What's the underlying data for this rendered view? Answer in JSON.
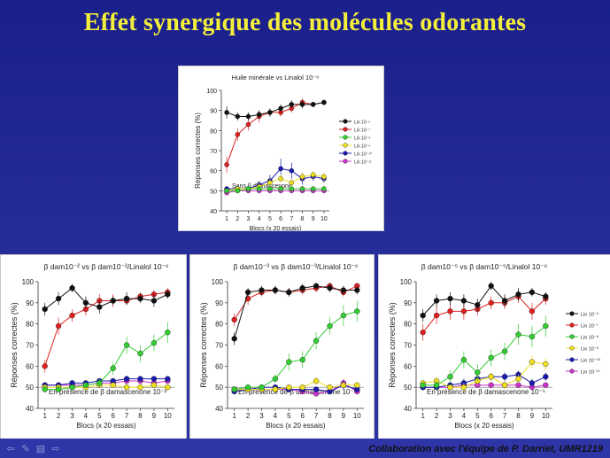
{
  "slide": {
    "title": "Effet synergique des molécules odorantes",
    "credit": "Collaboration avec l'équipe de P. Darriet, UMR1219",
    "nav_icons": [
      "prev-icon",
      "pen-icon",
      "menu-icon",
      "next-icon"
    ]
  },
  "series_colors": [
    "#111111",
    "#e02020",
    "#33cc33",
    "#f0e020",
    "#1a1ab0",
    "#cc33cc"
  ],
  "chart_data": [
    {
      "type": "line",
      "title": "Huile minérale vs Linalol 10⁻⁶",
      "annotation": "Sans β damascenone",
      "xlabel": "Blocs (x 20 essais)",
      "ylabel": "Réponses correctes (%)",
      "x": [
        1,
        2,
        3,
        4,
        5,
        6,
        7,
        8,
        9,
        10
      ],
      "xlim": [
        0.5,
        10.5
      ],
      "ylim": [
        40,
        100
      ],
      "yticks": [
        40,
        50,
        60,
        70,
        80,
        90,
        100
      ],
      "xticks": [
        1,
        2,
        3,
        4,
        5,
        6,
        7,
        8,
        9,
        10
      ],
      "chance_line": 50,
      "legend_position": "right",
      "series": [
        {
          "name": "Lin 10⁻⁶",
          "values": [
            89,
            87,
            87,
            88,
            89,
            91,
            93,
            93,
            93,
            94
          ],
          "err": [
            3,
            2,
            2,
            2,
            2,
            2,
            2,
            2,
            1,
            1
          ]
        },
        {
          "name": "Lin 10⁻⁷",
          "values": [
            63,
            78,
            83,
            87,
            89,
            89,
            91,
            94,
            93,
            94
          ],
          "err": [
            4,
            3,
            3,
            3,
            2,
            2,
            2,
            2,
            1,
            1
          ]
        },
        {
          "name": "Lin 10⁻⁸",
          "values": [
            50,
            50,
            51,
            51,
            51,
            51,
            51,
            51,
            51,
            51
          ],
          "err": [
            1,
            1,
            1,
            1,
            1,
            1,
            1,
            1,
            1,
            1
          ]
        },
        {
          "name": "Lin 10⁻⁹",
          "values": [
            50,
            51,
            51,
            52,
            54,
            56,
            54,
            57,
            58,
            57
          ],
          "err": [
            1,
            1,
            1,
            2,
            2,
            2,
            2,
            2,
            2,
            2
          ]
        },
        {
          "name": "Lin 10⁻¹⁰",
          "values": [
            51,
            51,
            51,
            53,
            55,
            61,
            60,
            56,
            57,
            56
          ],
          "err": [
            1,
            1,
            1,
            2,
            3,
            5,
            4,
            3,
            2,
            2
          ]
        },
        {
          "name": "Lin 10⁻¹¹",
          "values": [
            49,
            50,
            50,
            50,
            50,
            50,
            50,
            50,
            50,
            50
          ],
          "err": [
            1,
            1,
            1,
            1,
            1,
            1,
            1,
            1,
            1,
            1
          ]
        }
      ]
    },
    {
      "type": "line",
      "title": "β dam10⁻² vs β dam10⁻²/Linalol 10⁻⁶",
      "annotation": "En présence de β damascenone 10⁻²",
      "xlabel": "Blocs (x 20 essais)",
      "ylabel": "Réponses correctes (%)",
      "x": [
        1,
        2,
        3,
        4,
        5,
        6,
        7,
        8,
        9,
        10
      ],
      "xlim": [
        0.5,
        10.5
      ],
      "ylim": [
        40,
        100
      ],
      "yticks": [
        40,
        50,
        60,
        70,
        80,
        90,
        100
      ],
      "xticks": [
        1,
        2,
        3,
        4,
        5,
        6,
        7,
        8,
        9,
        10
      ],
      "chance_line": 50,
      "series": [
        {
          "values": [
            87,
            92,
            97,
            90,
            88,
            91,
            92,
            92,
            91,
            94
          ],
          "err": [
            3,
            3,
            2,
            3,
            3,
            2,
            3,
            2,
            3,
            2
          ]
        },
        {
          "values": [
            60,
            79,
            84,
            87,
            91,
            91,
            91,
            93,
            94,
            95
          ],
          "err": [
            3,
            4,
            3,
            3,
            3,
            3,
            2,
            2,
            2,
            2
          ]
        },
        {
          "values": [
            49,
            49,
            50,
            51,
            52,
            59,
            70,
            66,
            71,
            76
          ],
          "err": [
            1,
            1,
            1,
            1,
            2,
            3,
            4,
            4,
            4,
            5
          ]
        },
        {
          "values": [
            50,
            50,
            50,
            50,
            51,
            51,
            50,
            50,
            51,
            50
          ],
          "err": [
            1,
            1,
            1,
            1,
            1,
            1,
            1,
            1,
            1,
            1
          ]
        },
        {
          "values": [
            51,
            51,
            52,
            52,
            53,
            53,
            54,
            54,
            54,
            54
          ],
          "err": [
            1,
            1,
            1,
            1,
            1,
            1,
            1,
            1,
            1,
            1
          ]
        },
        {
          "values": [
            51,
            51,
            51,
            51,
            52,
            52,
            53,
            53,
            52,
            53
          ],
          "err": [
            1,
            1,
            1,
            1,
            1,
            1,
            1,
            1,
            1,
            1
          ]
        }
      ]
    },
    {
      "type": "line",
      "title": "β dam10⁻³ vs β dam10⁻³/Linalol 10⁻⁶",
      "annotation": "En présence de β damascenone 10⁻³",
      "xlabel": "Blocs (x 20 essais)",
      "ylabel": "Réponses correctes (%)",
      "x": [
        1,
        2,
        3,
        4,
        5,
        6,
        7,
        8,
        9,
        10
      ],
      "xlim": [
        0.5,
        10.5
      ],
      "ylim": [
        40,
        100
      ],
      "yticks": [
        40,
        50,
        60,
        70,
        80,
        90,
        100
      ],
      "xticks": [
        1,
        2,
        3,
        4,
        5,
        6,
        7,
        8,
        9,
        10
      ],
      "chance_line": 50,
      "series": [
        {
          "values": [
            73,
            95,
            96,
            96,
            95,
            97,
            98,
            97,
            96,
            96
          ],
          "err": [
            3,
            2,
            2,
            2,
            2,
            2,
            1,
            2,
            2,
            2
          ]
        },
        {
          "values": [
            82,
            92,
            95,
            96,
            95,
            96,
            97,
            98,
            95,
            98
          ],
          "err": [
            3,
            3,
            2,
            2,
            2,
            2,
            2,
            1,
            2,
            1
          ]
        },
        {
          "values": [
            49,
            50,
            50,
            54,
            62,
            63,
            72,
            79,
            84,
            86
          ],
          "err": [
            1,
            1,
            1,
            2,
            4,
            4,
            4,
            4,
            5,
            5
          ]
        },
        {
          "values": [
            49,
            49,
            49,
            49,
            50,
            50,
            53,
            50,
            51,
            51
          ],
          "err": [
            1,
            1,
            1,
            1,
            1,
            1,
            2,
            1,
            1,
            1
          ]
        },
        {
          "values": [
            48,
            49,
            50,
            50,
            49,
            49,
            49,
            48,
            51,
            49
          ],
          "err": [
            1,
            1,
            1,
            1,
            1,
            1,
            1,
            1,
            2,
            1
          ]
        },
        {
          "values": [
            49,
            49,
            49,
            49,
            49,
            48,
            47,
            48,
            52,
            48
          ],
          "err": [
            1,
            1,
            1,
            1,
            1,
            1,
            1,
            1,
            2,
            1
          ]
        }
      ]
    },
    {
      "type": "line",
      "title": "β dam10⁻⁵ vs β dam10⁻⁵/Linalol 10⁻⁶",
      "annotation": "En présence de β damascenone 10⁻⁵",
      "xlabel": "Blocs (x 20 essais)",
      "ylabel": "Réponses correctes (%)",
      "x": [
        1,
        2,
        3,
        4,
        5,
        6,
        7,
        8,
        9,
        10
      ],
      "xlim": [
        0.5,
        10.5
      ],
      "ylim": [
        40,
        100
      ],
      "yticks": [
        40,
        50,
        60,
        70,
        80,
        90,
        100
      ],
      "xticks": [
        1,
        2,
        3,
        4,
        5,
        6,
        7,
        8,
        9,
        10
      ],
      "chance_line": 50,
      "legend_position": "right",
      "series": [
        {
          "name": "Lin 10⁻⁶",
          "values": [
            84,
            91,
            92,
            91,
            89,
            98,
            91,
            94,
            95,
            93
          ],
          "err": [
            3,
            3,
            3,
            3,
            3,
            2,
            3,
            3,
            2,
            2
          ]
        },
        {
          "name": "Lin 10⁻⁷",
          "values": [
            76,
            84,
            86,
            86,
            87,
            90,
            90,
            93,
            86,
            92
          ],
          "err": [
            4,
            4,
            4,
            4,
            3,
            3,
            3,
            3,
            4,
            3
          ]
        },
        {
          "name": "Lin 10⁻⁸",
          "values": [
            51,
            51,
            55,
            63,
            57,
            64,
            67,
            75,
            74,
            79
          ],
          "err": [
            1,
            2,
            3,
            4,
            4,
            4,
            4,
            5,
            5,
            5
          ]
        },
        {
          "name": "Lin 10⁻⁹",
          "values": [
            52,
            53,
            50,
            50,
            53,
            55,
            51,
            54,
            62,
            61
          ],
          "err": [
            1,
            2,
            1,
            2,
            2,
            2,
            2,
            2,
            3,
            3
          ]
        },
        {
          "name": "Lin 10⁻¹⁰",
          "values": [
            50,
            50,
            51,
            52,
            54,
            55,
            55,
            56,
            52,
            55
          ],
          "err": [
            1,
            1,
            1,
            2,
            2,
            2,
            2,
            2,
            2,
            2
          ]
        },
        {
          "name": "Lin 10⁻¹¹",
          "values": [
            50,
            50,
            50,
            51,
            51,
            51,
            51,
            51,
            50,
            51
          ],
          "err": [
            1,
            1,
            1,
            1,
            1,
            1,
            1,
            1,
            1,
            1
          ]
        }
      ]
    }
  ]
}
